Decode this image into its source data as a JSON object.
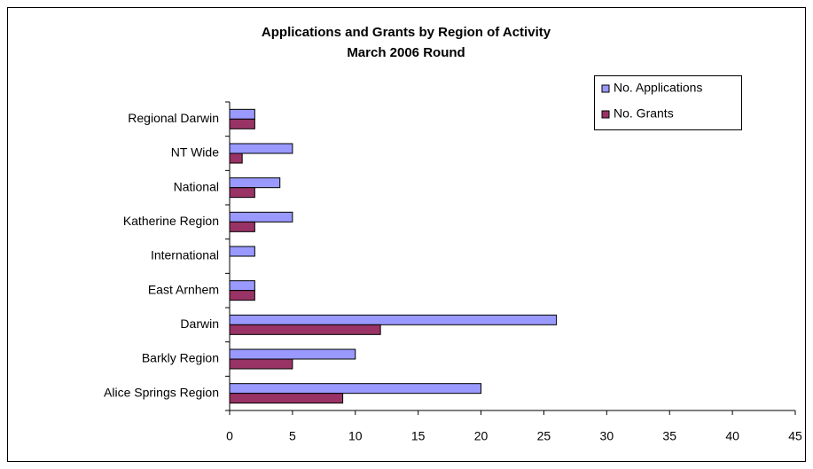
{
  "chart_data": {
    "type": "bar",
    "orientation": "horizontal",
    "title": "Applications and Grants by Region of Activity",
    "subtitle": "March 2006 Round",
    "categories": [
      "Regional Darwin",
      "NT Wide",
      "National",
      "Katherine Region",
      "International",
      "East Arnhem",
      "Darwin",
      "Barkly Region",
      "Alice Springs Region"
    ],
    "series": [
      {
        "name": "No. Applications",
        "color": "#9999ff",
        "values": [
          2,
          5,
          4,
          5,
          2,
          2,
          26,
          10,
          20
        ]
      },
      {
        "name": "No. Grants",
        "color": "#993366",
        "values": [
          2,
          1,
          2,
          2,
          0,
          2,
          12,
          5,
          9
        ]
      }
    ],
    "xlim": [
      0,
      45
    ],
    "xticks": [
      0,
      5,
      10,
      15,
      20,
      25,
      30,
      35,
      40,
      45
    ],
    "grid": false,
    "legend": "upper right"
  }
}
